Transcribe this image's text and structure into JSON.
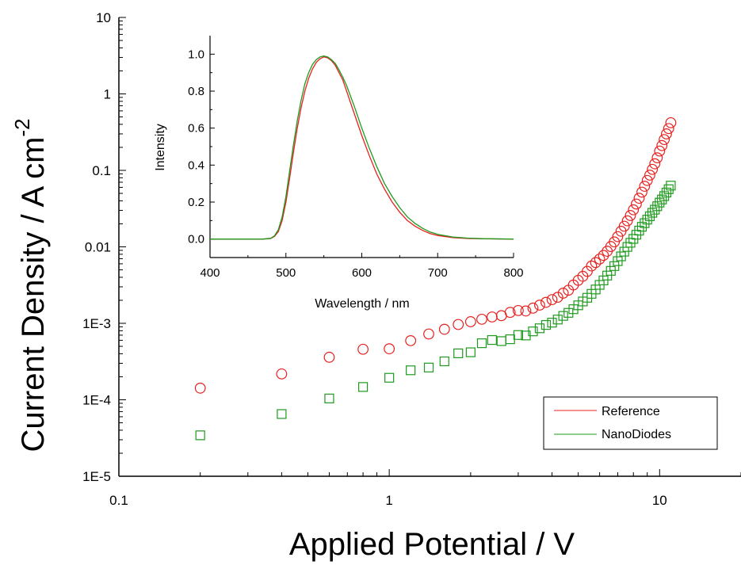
{
  "chart_data": [
    {
      "type": "scatter",
      "xlabel": "Applied Potential / V",
      "ylabel_main": "Current Density / A cm",
      "ylabel_sup": "-2",
      "xscale": "log",
      "yscale": "log",
      "xlim": [
        0.1,
        20
      ],
      "ylim": [
        1e-05,
        10
      ],
      "x_ticks": [
        {
          "value": 0.1,
          "label": "0.1"
        },
        {
          "value": 1,
          "label": "1"
        },
        {
          "value": 10,
          "label": "10"
        }
      ],
      "y_ticks": [
        {
          "value": 10,
          "label": "10"
        },
        {
          "value": 1,
          "label": "1"
        },
        {
          "value": 0.1,
          "label": "0.1"
        },
        {
          "value": 0.01,
          "label": "0.01"
        },
        {
          "value": 0.001,
          "label": "1E-3"
        },
        {
          "value": 0.0001,
          "label": "1E-4"
        },
        {
          "value": 1e-05,
          "label": "1E-5"
        }
      ],
      "legend": {
        "position": "bottom-right"
      },
      "series": [
        {
          "name": "Reference",
          "color": "#e8201e",
          "marker": "circle",
          "points": [
            [
              0.2,
              0.000142
            ],
            [
              0.4,
              0.000218
            ],
            [
              0.6,
              0.00036
            ],
            [
              0.8,
              0.000458
            ],
            [
              1.0,
              0.000464
            ],
            [
              1.2,
              0.000593
            ],
            [
              1.4,
              0.000725
            ],
            [
              1.6,
              0.000835
            ],
            [
              1.8,
              0.000965
            ],
            [
              2.0,
              0.00105
            ],
            [
              2.2,
              0.00113
            ],
            [
              2.4,
              0.00121
            ],
            [
              2.6,
              0.00126
            ],
            [
              2.8,
              0.00139
            ],
            [
              3.0,
              0.00147
            ],
            [
              3.2,
              0.00145
            ],
            [
              3.4,
              0.00158
            ],
            [
              3.6,
              0.00173
            ],
            [
              3.8,
              0.00188
            ],
            [
              4.0,
              0.00204
            ],
            [
              4.2,
              0.00219
            ],
            [
              4.4,
              0.00248
            ],
            [
              4.6,
              0.00271
            ],
            [
              4.8,
              0.00317
            ],
            [
              5.0,
              0.00365
            ],
            [
              5.2,
              0.00412
            ],
            [
              5.4,
              0.00478
            ],
            [
              5.6,
              0.00562
            ],
            [
              5.8,
              0.00623
            ],
            [
              6.0,
              0.00693
            ],
            [
              6.2,
              0.00773
            ],
            [
              6.4,
              0.00876
            ],
            [
              6.6,
              0.0101
            ],
            [
              6.8,
              0.0116
            ],
            [
              7.0,
              0.0136
            ],
            [
              7.2,
              0.016
            ],
            [
              7.4,
              0.0186
            ],
            [
              7.6,
              0.0219
            ],
            [
              7.8,
              0.0257
            ],
            [
              8.0,
              0.0305
            ],
            [
              8.2,
              0.0363
            ],
            [
              8.4,
              0.0432
            ],
            [
              8.6,
              0.0519
            ],
            [
              8.8,
              0.062
            ],
            [
              9.0,
              0.0738
            ],
            [
              9.2,
              0.0866
            ],
            [
              9.4,
              0.103
            ],
            [
              9.6,
              0.122
            ],
            [
              9.8,
              0.146
            ],
            [
              10.0,
              0.179
            ],
            [
              10.2,
              0.211
            ],
            [
              10.4,
              0.253
            ],
            [
              10.6,
              0.3
            ],
            [
              10.8,
              0.352
            ],
            [
              11.0,
              0.42
            ]
          ]
        },
        {
          "name": "NanoDiodes",
          "color": "#1e9a1e",
          "marker": "square",
          "points": [
            [
              0.2,
              3.43e-05
            ],
            [
              0.4,
              6.51e-05
            ],
            [
              0.6,
              0.000104
            ],
            [
              0.8,
              0.000147
            ],
            [
              1.0,
              0.000194
            ],
            [
              1.2,
              0.000243
            ],
            [
              1.4,
              0.000264
            ],
            [
              1.6,
              0.000318
            ],
            [
              1.8,
              0.000405
            ],
            [
              2.0,
              0.000418
            ],
            [
              2.2,
              0.000549
            ],
            [
              2.4,
              0.000605
            ],
            [
              2.6,
              0.000585
            ],
            [
              2.8,
              0.000619
            ],
            [
              3.0,
              0.000703
            ],
            [
              3.2,
              0.000693
            ],
            [
              3.4,
              0.000784
            ],
            [
              3.6,
              0.000861
            ],
            [
              3.8,
              0.000952
            ],
            [
              4.0,
              0.00102
            ],
            [
              4.2,
              0.00112
            ],
            [
              4.4,
              0.00125
            ],
            [
              4.6,
              0.00137
            ],
            [
              4.8,
              0.00153
            ],
            [
              5.0,
              0.00172
            ],
            [
              5.2,
              0.00193
            ],
            [
              5.4,
              0.00216
            ],
            [
              5.6,
              0.00243
            ],
            [
              5.8,
              0.00277
            ],
            [
              6.0,
              0.00318
            ],
            [
              6.2,
              0.00364
            ],
            [
              6.4,
              0.00421
            ],
            [
              6.6,
              0.00485
            ],
            [
              6.8,
              0.0056
            ],
            [
              7.0,
              0.0065
            ],
            [
              7.2,
              0.00751
            ],
            [
              7.4,
              0.00865
            ],
            [
              7.6,
              0.00997
            ],
            [
              7.8,
              0.0113
            ],
            [
              8.0,
              0.0127
            ],
            [
              8.2,
              0.0144
            ],
            [
              8.4,
              0.0163
            ],
            [
              8.6,
              0.0183
            ],
            [
              8.8,
              0.0204
            ],
            [
              9.0,
              0.0227
            ],
            [
              9.2,
              0.0251
            ],
            [
              9.4,
              0.0279
            ],
            [
              9.6,
              0.0306
            ],
            [
              9.8,
              0.034
            ],
            [
              10.0,
              0.0379
            ],
            [
              10.2,
              0.0416
            ],
            [
              10.4,
              0.0461
            ],
            [
              10.6,
              0.0513
            ],
            [
              10.8,
              0.0567
            ],
            [
              11.0,
              0.0632
            ]
          ]
        }
      ]
    },
    {
      "type": "line",
      "xlabel": "Wavelength / nm",
      "ylabel": "Intensity",
      "xlim": [
        400,
        800
      ],
      "ylim": [
        -0.1,
        1.1
      ],
      "x_ticks": [
        {
          "value": 400,
          "label": "400"
        },
        {
          "value": 500,
          "label": "500"
        },
        {
          "value": 600,
          "label": "600"
        },
        {
          "value": 700,
          "label": "700"
        },
        {
          "value": 800,
          "label": "800"
        }
      ],
      "y_ticks": [
        {
          "value": 0.0,
          "label": "0.0"
        },
        {
          "value": 0.2,
          "label": "0.2"
        },
        {
          "value": 0.4,
          "label": "0.4"
        },
        {
          "value": 0.6,
          "label": "0.6"
        },
        {
          "value": 0.8,
          "label": "0.8"
        },
        {
          "value": 1.0,
          "label": "1.0"
        }
      ],
      "series": [
        {
          "name": "Reference",
          "color": "#e8201e",
          "points": [
            [
              400,
              0.0
            ],
            [
              470,
              0.0
            ],
            [
              480,
              0.003
            ],
            [
              485,
              0.015
            ],
            [
              490,
              0.04
            ],
            [
              495,
              0.1
            ],
            [
              500,
              0.2
            ],
            [
              505,
              0.33
            ],
            [
              510,
              0.47
            ],
            [
              515,
              0.6
            ],
            [
              520,
              0.71
            ],
            [
              525,
              0.8
            ],
            [
              530,
              0.87
            ],
            [
              535,
              0.92
            ],
            [
              540,
              0.955
            ],
            [
              545,
              0.975
            ],
            [
              550,
              0.985
            ],
            [
              555,
              0.98
            ],
            [
              560,
              0.965
            ],
            [
              565,
              0.94
            ],
            [
              570,
              0.9
            ],
            [
              575,
              0.86
            ],
            [
              580,
              0.8
            ],
            [
              585,
              0.74
            ],
            [
              590,
              0.68
            ],
            [
              595,
              0.62
            ],
            [
              600,
              0.56
            ],
            [
              610,
              0.45
            ],
            [
              620,
              0.35
            ],
            [
              630,
              0.27
            ],
            [
              640,
              0.2
            ],
            [
              650,
              0.145
            ],
            [
              660,
              0.1
            ],
            [
              670,
              0.07
            ],
            [
              680,
              0.047
            ],
            [
              690,
              0.03
            ],
            [
              700,
              0.019
            ],
            [
              720,
              0.008
            ],
            [
              740,
              0.003
            ],
            [
              760,
              0.001
            ],
            [
              800,
              0.0
            ]
          ]
        },
        {
          "name": "NanoDiodes",
          "color": "#1e9a1e",
          "points": [
            [
              400,
              0.0
            ],
            [
              470,
              0.0
            ],
            [
              480,
              0.004
            ],
            [
              485,
              0.018
            ],
            [
              490,
              0.05
            ],
            [
              495,
              0.12
            ],
            [
              500,
              0.23
            ],
            [
              505,
              0.37
            ],
            [
              510,
              0.51
            ],
            [
              515,
              0.64
            ],
            [
              520,
              0.75
            ],
            [
              525,
              0.84
            ],
            [
              530,
              0.9
            ],
            [
              535,
              0.945
            ],
            [
              540,
              0.97
            ],
            [
              545,
              0.985
            ],
            [
              550,
              0.99
            ],
            [
              555,
              0.985
            ],
            [
              560,
              0.97
            ],
            [
              565,
              0.95
            ],
            [
              570,
              0.915
            ],
            [
              575,
              0.875
            ],
            [
              580,
              0.83
            ],
            [
              585,
              0.775
            ],
            [
              590,
              0.72
            ],
            [
              595,
              0.66
            ],
            [
              600,
              0.6
            ],
            [
              610,
              0.49
            ],
            [
              620,
              0.39
            ],
            [
              630,
              0.3
            ],
            [
              640,
              0.23
            ],
            [
              650,
              0.17
            ],
            [
              660,
              0.12
            ],
            [
              670,
              0.085
            ],
            [
              680,
              0.058
            ],
            [
              690,
              0.038
            ],
            [
              700,
              0.025
            ],
            [
              720,
              0.011
            ],
            [
              740,
              0.005
            ],
            [
              760,
              0.002
            ],
            [
              800,
              0.0
            ]
          ]
        }
      ]
    }
  ]
}
